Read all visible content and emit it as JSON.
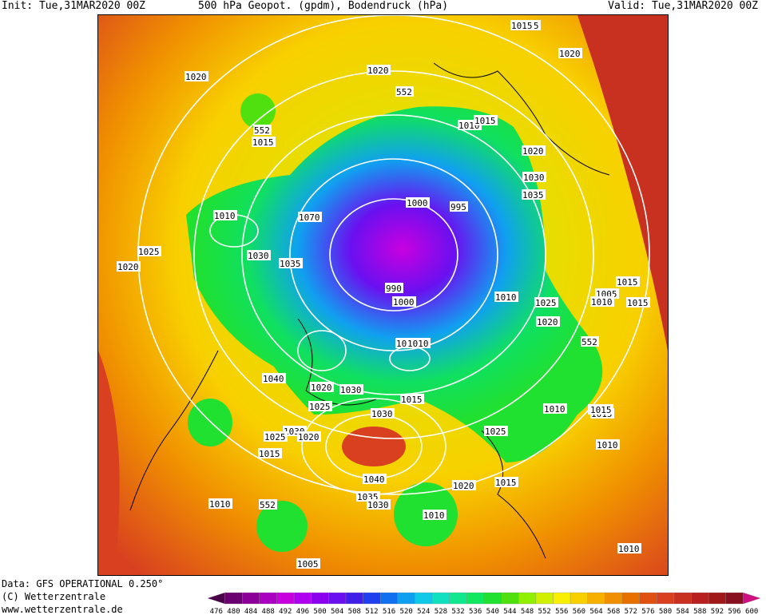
{
  "header": {
    "init": "Init: Tue,31MAR2020 00Z",
    "title": "500 hPa Geopot. (gpdm), Bodendruck (hPa)",
    "valid": "Valid: Tue,31MAR2020 00Z"
  },
  "footer": {
    "data_source": "Data: GFS OPERATIONAL 0.250°",
    "copyright": "(C) Wetterzentrale",
    "website": "www.wetterzentrale.de"
  },
  "legend": {
    "values": [
      "476",
      "480",
      "484",
      "488",
      "492",
      "496",
      "500",
      "504",
      "508",
      "512",
      "516",
      "520",
      "524",
      "528",
      "532",
      "536",
      "540",
      "544",
      "548",
      "552",
      "556",
      "560",
      "564",
      "568",
      "572",
      "576",
      "580",
      "584",
      "588",
      "592",
      "596",
      "600"
    ],
    "colors": [
      "#4a0048",
      "#6a0070",
      "#8a0098",
      "#aa00c0",
      "#c800e0",
      "#b000f0",
      "#8c00f0",
      "#6a10f0",
      "#4020e8",
      "#2040f0",
      "#1070f0",
      "#10a0f0",
      "#10c8e8",
      "#10e0c0",
      "#10e890",
      "#10e860",
      "#20e030",
      "#50e010",
      "#90f000",
      "#d0f000",
      "#f8f000",
      "#f8d000",
      "#f8b000",
      "#f09000",
      "#e87000",
      "#e05010",
      "#d84020",
      "#c83020",
      "#b82020",
      "#a01818",
      "#881020",
      "#d01080"
    ]
  },
  "map": {
    "pressure_labels": [
      "1015",
      "1020",
      "1025",
      "552",
      "1015",
      "1020",
      "1015",
      "1010",
      "1020",
      "1020",
      "1030",
      "1035",
      "552",
      "1000",
      "995",
      "1015",
      "1010",
      "1070",
      "1025",
      "1020",
      "1030",
      "1035",
      "990",
      "1000",
      "1010",
      "1010",
      "1005",
      "1025",
      "1015",
      "1015",
      "1005",
      "1010",
      "1020",
      "552",
      "1040",
      "1010",
      "1015",
      "1030",
      "1020",
      "1025",
      "1030",
      "1025",
      "1020",
      "1015",
      "1030",
      "1015",
      "1010",
      "552",
      "1025",
      "1030",
      "1010",
      "1015",
      "1040",
      "1035",
      "1030",
      "1020",
      "1015",
      "1010",
      "552",
      "1010",
      "1005",
      "1015",
      "1010"
    ]
  },
  "colors": {
    "contour": "#ffffff",
    "coast": "#000000",
    "label_bg": "#ffffff"
  }
}
